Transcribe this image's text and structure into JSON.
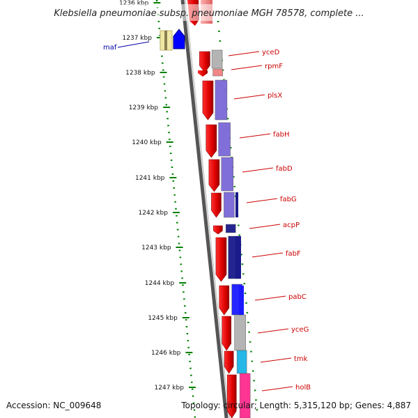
{
  "title": "Klebsiella pneumoniae subsp. pneumoniae MGH 78578, complete ...",
  "accession_text": "Accession: NC_009648",
  "summary_text": "Topology: circular; Length: 5,315,120 bp; Genes: 4,887",
  "scale_labels": [
    "1236 kbp",
    "1237 kbp",
    "1238 kbp",
    "1239 kbp",
    "1240 kbp",
    "1241 kbp",
    "1242 kbp",
    "1243 kbp",
    "1244 kbp",
    "1245 kbp",
    "1246 kbp",
    "1247 kbp"
  ],
  "genes": [
    {
      "name": "maf",
      "color": "#e8df8a"
    },
    {
      "name": "yceD",
      "color": "#b0b0b0"
    },
    {
      "name": "rpmF",
      "color": "#f08080"
    },
    {
      "name": "plsX",
      "color": "#7b68d8"
    },
    {
      "name": "fabH",
      "color": "#7b68d8"
    },
    {
      "name": "fabD",
      "color": "#7b68d8"
    },
    {
      "name": "fabG",
      "color": "#7b68d8"
    },
    {
      "name": "acpP",
      "color": "#1a1a8c"
    },
    {
      "name": "fabF",
      "color": "#1a1a8c"
    },
    {
      "name": "pabC",
      "color": "#1a1aff"
    },
    {
      "name": "yceG",
      "color": "#b0b0b0"
    },
    {
      "name": "tmk",
      "color": "#19b4e6"
    },
    {
      "name": "holB",
      "color": "#ff2b8f"
    }
  ],
  "colors": {
    "cds": "#e00000",
    "backbone": "#7a7a7a",
    "scale": "#008000",
    "label_line": "#cc0000",
    "maf_line": "#0000aa"
  }
}
